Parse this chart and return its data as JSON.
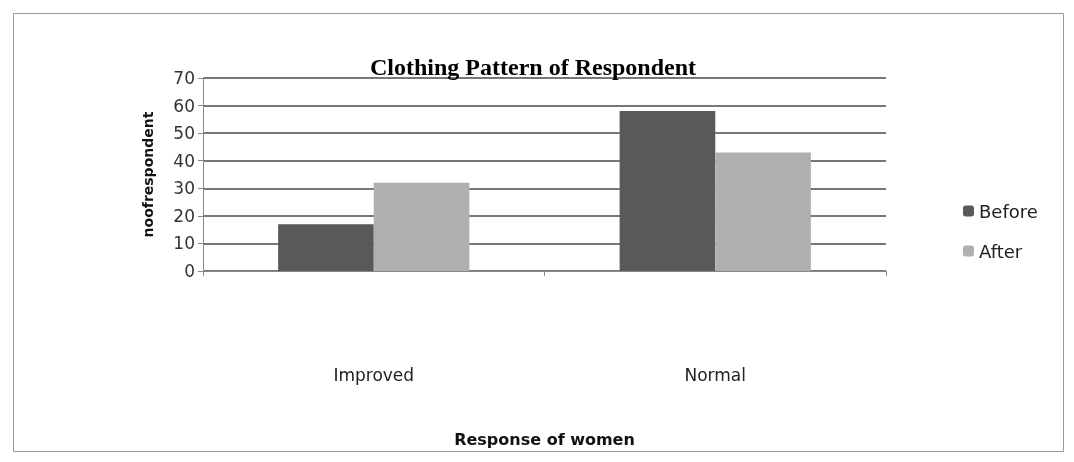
{
  "chart_data": {
    "type": "bar",
    "title": "Clothing Pattern of Respondent",
    "xlabel": "Response of women",
    "ylabel": "noofrespondent",
    "categories": [
      "Improved",
      "Normal"
    ],
    "series": [
      {
        "name": "Before",
        "color": "#595959",
        "values": [
          17,
          58
        ]
      },
      {
        "name": "After",
        "color": "#b0b0b0",
        "values": [
          32,
          43
        ]
      }
    ],
    "ylim": [
      0,
      70
    ],
    "yticks": [
      0,
      10,
      20,
      30,
      40,
      50,
      60,
      70
    ],
    "grid": "y",
    "legend": "right"
  }
}
